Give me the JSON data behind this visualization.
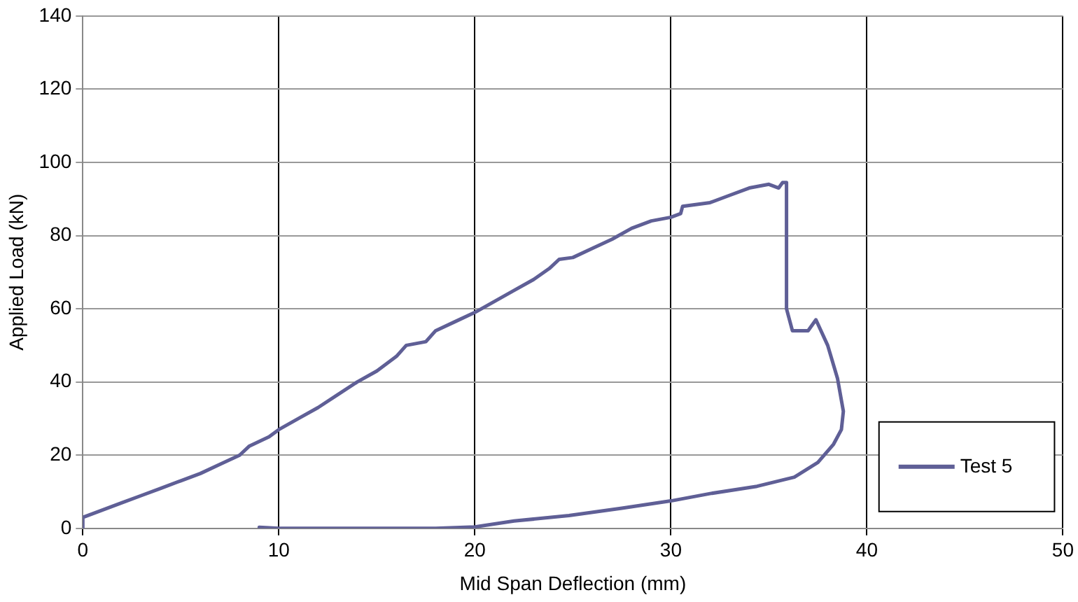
{
  "chart_data": {
    "type": "line",
    "xlabel": "Mid Span Deflection (mm)",
    "ylabel": "Applied Load (kN)",
    "xlim": [
      0,
      50
    ],
    "xticks": [
      0,
      10,
      20,
      30,
      40,
      50
    ],
    "ylim": [
      0,
      140
    ],
    "yticks": [
      0,
      20,
      40,
      60,
      80,
      100,
      120,
      140
    ],
    "grid": true,
    "legend": "bottom right",
    "marker": "none",
    "line_style": "solid",
    "series": [
      {
        "name": "Test 5",
        "color": "#5f5f96",
        "x": [
          0,
          0,
          0.5,
          1,
          2,
          3,
          4,
          5,
          6,
          7,
          8,
          8.5,
          9.5,
          10,
          11,
          12,
          13,
          14,
          15,
          16,
          16.5,
          17.5,
          18,
          19,
          20,
          21,
          22,
          23,
          23.8,
          24.3,
          25,
          26,
          27,
          28,
          29,
          30,
          30.5,
          30.6,
          32,
          33,
          34,
          35,
          35.5,
          35.7,
          35.9,
          35.9,
          36.2,
          37,
          37.4,
          38,
          38.5,
          38.8,
          38.7,
          38.3,
          37.5,
          36.3,
          34.4,
          32,
          30,
          27.5,
          24.8,
          22,
          20,
          18,
          14,
          10,
          9
        ],
        "values": [
          0,
          3,
          4,
          5,
          7,
          9,
          11,
          13,
          15,
          17.5,
          20,
          22.5,
          25,
          27,
          30,
          33,
          36.5,
          40,
          43,
          47,
          50,
          51,
          54,
          56.5,
          59,
          62,
          65,
          68,
          71,
          73.5,
          74,
          76.5,
          79,
          82,
          84,
          85,
          86,
          88,
          89,
          91,
          93,
          94,
          93,
          94.5,
          94.5,
          60,
          54,
          54,
          57,
          50,
          41,
          32,
          27,
          23,
          18,
          14,
          11.5,
          9.5,
          7.5,
          5.5,
          3.5,
          2,
          0.4,
          0,
          0,
          0,
          0.3
        ]
      }
    ]
  }
}
